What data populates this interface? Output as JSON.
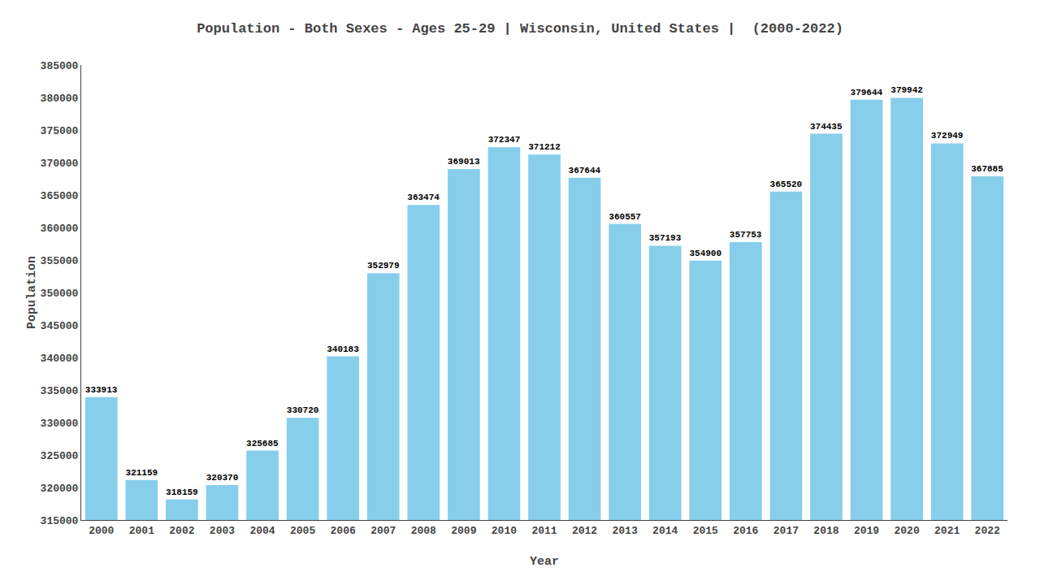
{
  "chart_data": {
    "type": "bar",
    "title": "Population - Both Sexes - Ages 25-29 | Wisconsin, United States |  (2000-2022)",
    "xlabel": "Year",
    "ylabel": "Population",
    "categories": [
      "2000",
      "2001",
      "2002",
      "2003",
      "2004",
      "2005",
      "2006",
      "2007",
      "2008",
      "2009",
      "2010",
      "2011",
      "2012",
      "2013",
      "2014",
      "2015",
      "2016",
      "2017",
      "2018",
      "2019",
      "2020",
      "2021",
      "2022"
    ],
    "values": [
      333913,
      321159,
      318159,
      320370,
      325685,
      330720,
      340183,
      352979,
      363474,
      369013,
      372347,
      371212,
      367644,
      360557,
      357193,
      354900,
      357753,
      365520,
      374435,
      379644,
      379942,
      372949,
      367885
    ],
    "color": "#87ceeb",
    "ylim": [
      315000,
      385000
    ],
    "yticks": [
      315000,
      320000,
      325000,
      330000,
      335000,
      340000,
      345000,
      350000,
      355000,
      360000,
      365000,
      370000,
      375000,
      380000,
      385000
    ],
    "grid": false,
    "data_labels": true
  }
}
